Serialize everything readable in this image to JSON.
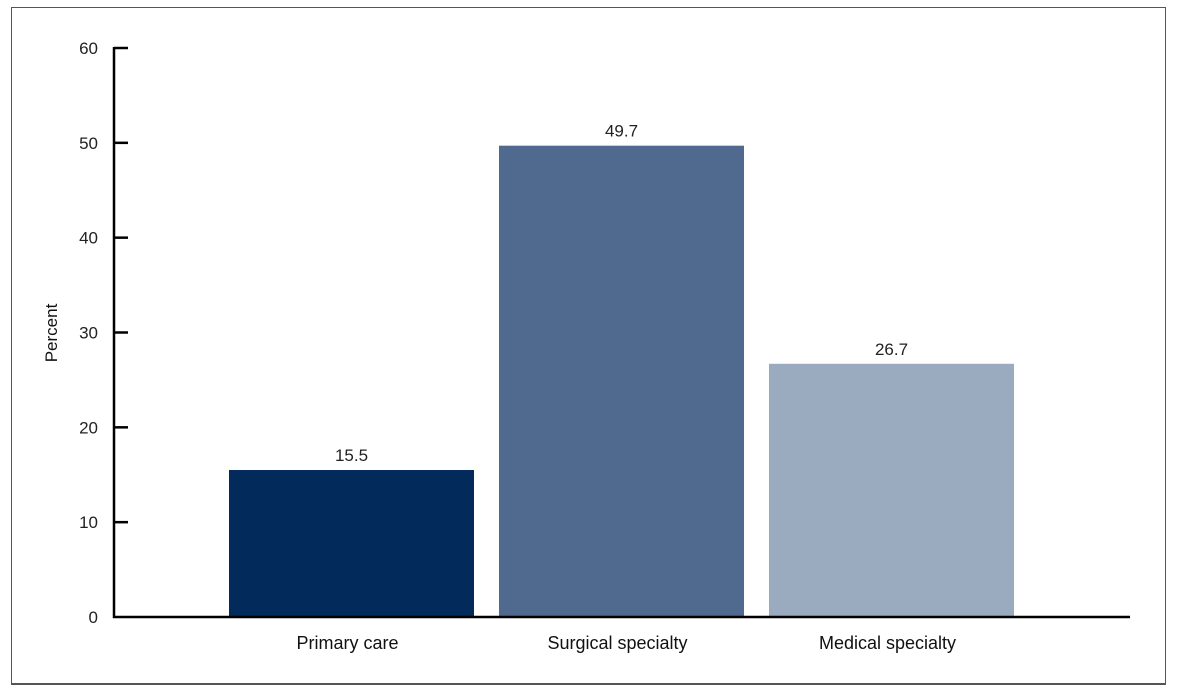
{
  "chart_data": {
    "type": "bar",
    "title": "",
    "xlabel": "",
    "ylabel": "Percent",
    "ylim": [
      0,
      60
    ],
    "yticks": [
      0,
      10,
      20,
      30,
      40,
      50,
      60
    ],
    "grid": false,
    "legend": "none",
    "categories": [
      "Primary care",
      "Surgical specialty",
      "Medical specialty"
    ],
    "values": [
      15.5,
      49.7,
      26.7
    ],
    "value_labels": [
      "15.5",
      "49.7",
      "26.7"
    ],
    "colors": [
      "#022b5c",
      "#4f6a8e",
      "#9aaabf"
    ]
  }
}
